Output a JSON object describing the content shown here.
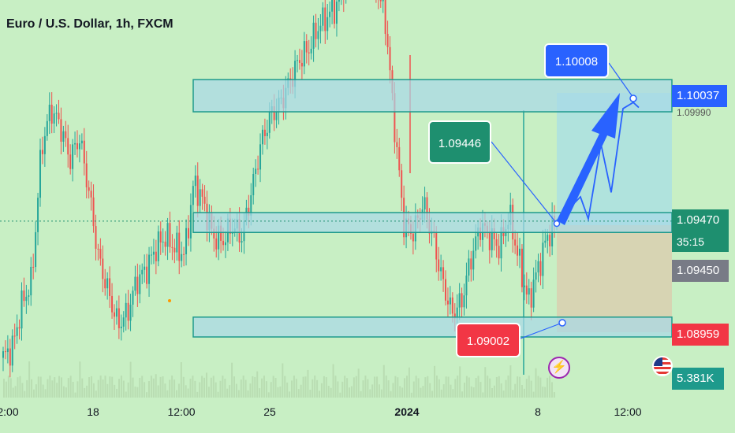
{
  "title": "Euro / U.S. Dollar, 1h, FXCM",
  "price_axis": {
    "target": "1.10037",
    "current_price": "1.09470",
    "countdown": "35:15",
    "entry": "1.09450",
    "stop": "1.08959",
    "volume": "5.381K"
  },
  "callouts": {
    "target": "1.10008",
    "resistance": "1.09446",
    "support": "1.09002"
  },
  "time_axis": [
    "2:00",
    "18",
    "12:00",
    "25",
    "2024",
    "8",
    "12:00"
  ],
  "icons": {
    "event": "lightning-icon",
    "country": "us-flag-icon"
  },
  "colors": {
    "background": "#c8efc4",
    "up_candle": "#26a69a",
    "down_candle": "#ef5350",
    "zone_fill": "#a8d8e8",
    "zone_border": "#1e9a8c",
    "arrow": "#2962ff",
    "target_label": "#2962ff",
    "current_label": "#1e8f6f",
    "stop_label": "#f23645",
    "entry_label": "#787b86"
  },
  "chart_data": {
    "type": "candlestick",
    "title": "Euro / U.S. Dollar, 1h, FXCM",
    "ylim": [
      1.0885,
      1.103
    ],
    "x": [
      "2:00",
      "18",
      "12:00",
      "25",
      "2024",
      "8",
      "12:00"
    ],
    "price_path": [
      1.0885,
      1.089,
      1.091,
      1.092,
      1.098,
      1.0998,
      1.099,
      1.0975,
      1.0985,
      1.096,
      1.093,
      1.0915,
      1.09,
      1.0905,
      1.092,
      1.0925,
      1.0935,
      1.094,
      1.0935,
      1.0932,
      1.0965,
      1.0955,
      1.094,
      1.0938,
      1.0945,
      1.094,
      1.096,
      1.0982,
      1.0995,
      1.1,
      1.101,
      1.102,
      1.1025,
      1.1035,
      1.104,
      1.1045,
      1.106,
      1.1075,
      1.1065,
      1.1055,
      1.104,
      1.099,
      1.0945,
      1.0942,
      1.0955,
      1.094,
      1.092,
      1.0905,
      1.091,
      1.093,
      1.0945,
      1.094,
      1.0935,
      1.095,
      1.093,
      1.091,
      1.0925,
      1.094,
      1.0947
    ],
    "zones": [
      {
        "name": "resistance-zone",
        "from": 1.10037,
        "to": 1.10083
      },
      {
        "name": "middle-zone",
        "from": 1.0944,
        "to": 1.0948
      },
      {
        "name": "support-zone",
        "from": 1.08959,
        "to": 1.08999
      }
    ],
    "projection": [
      1.0947,
      1.0958,
      1.0948,
      1.0982,
      1.096,
      1.0998,
      1.10008,
      1.09985
    ],
    "target": 1.10008,
    "stop": 1.08959,
    "entry": 1.0945,
    "current": 1.0947,
    "volume": "5.381K",
    "grid": false
  }
}
